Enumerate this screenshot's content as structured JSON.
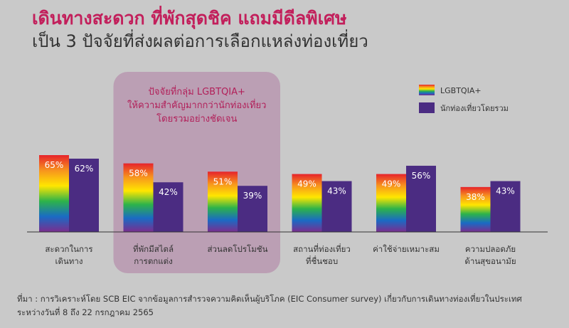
{
  "header": {
    "title": "เดินทางสะดวก ที่พักสุดชิค แถมมีดีลพิเศษ",
    "subtitle": "เป็น 3 ปัจจัยที่ส่งผลต่อการเลือกแหล่งท่องเที่ยว"
  },
  "callout": {
    "lines": [
      "ปัจจัยที่กลุ่ม LGBTQIA+",
      "ให้ความสำคัญมากกว่านักท่องเที่ยว",
      "โดยรวมอย่างชัดเจน"
    ]
  },
  "source": {
    "line1": "ที่มา : การวิเคราะห์โดย SCB EIC จากข้อมูลการสำรวจความคิดเห็นผู้บริโภค (EIC Consumer survey) เกี่ยวกับการเดินทางท่องเที่ยวในประเทศ",
    "line2": "ระหว่างวันที่ 8 ถึง 22 กรกฎาคม 2565"
  },
  "colors": {
    "title": "#c21f5b",
    "overall": "#4b2c82",
    "callout_bg": "#b898b0",
    "callout_text": "#b21f59",
    "rainbow": [
      "#e6232b",
      "#f7941e",
      "#ffe600",
      "#2db34a",
      "#1a6bc4",
      "#7b2d8e"
    ]
  },
  "chart_data": {
    "type": "bar",
    "categories": [
      [
        "สะดวกในการ",
        "เดินทาง"
      ],
      [
        "ที่พักมีสไตล์",
        "การตกแต่ง"
      ],
      [
        "ส่วนลดโปรโมชัน"
      ],
      [
        "สถานที่ท่องเที่ยว",
        "ที่ชื่นชอบ"
      ],
      [
        "ค่าใช้จ่ายเหมาะสม"
      ],
      [
        "ความปลอดภัย",
        "ด้านสุขอนามัย"
      ]
    ],
    "series": [
      {
        "name": "LGBTQIA+",
        "values": [
          65,
          58,
          51,
          49,
          49,
          38
        ],
        "style": "rainbow"
      },
      {
        "name": "นักท่องเที่ยวโดยรวม",
        "values": [
          62,
          42,
          39,
          43,
          56,
          43
        ],
        "style": "solid"
      }
    ],
    "value_suffix": "%",
    "highlighted_categories": [
      1,
      2
    ],
    "legend_position": "top-right",
    "grid": false
  }
}
